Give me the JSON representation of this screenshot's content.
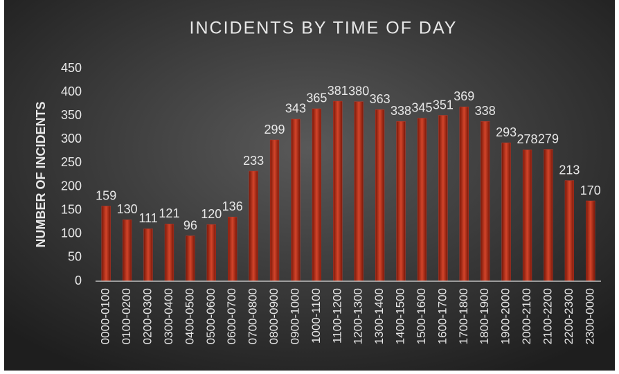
{
  "chart_data": {
    "type": "bar",
    "title": "INCIDENTS BY TIME OF DAY",
    "y_label": "NUMBER OF INCIDENTS",
    "categories": [
      "0000-0100",
      "0100-0200",
      "0200-0300",
      "0300-0400",
      "0400-0500",
      "0500-0600",
      "0600-0700",
      "0700-0800",
      "0800-0900",
      "0900-1000",
      "1000-1100",
      "1100-1200",
      "1200-1300",
      "1300-1400",
      "1400-1500",
      "1500-1600",
      "1600-1700",
      "1700-1800",
      "1800-1900",
      "1900-2000",
      "2000-2100",
      "2100-2200",
      "2200-2300",
      "2300-0000"
    ],
    "values": [
      159,
      130,
      111,
      121,
      96,
      120,
      136,
      233,
      299,
      343,
      365,
      381,
      380,
      363,
      338,
      345,
      351,
      369,
      338,
      293,
      278,
      279,
      213,
      170
    ],
    "color": "#c0392b",
    "ylim": [
      0,
      450
    ],
    "yticks": [
      0,
      50,
      100,
      150,
      200,
      250,
      300,
      350,
      400,
      450
    ],
    "grid": false
  }
}
